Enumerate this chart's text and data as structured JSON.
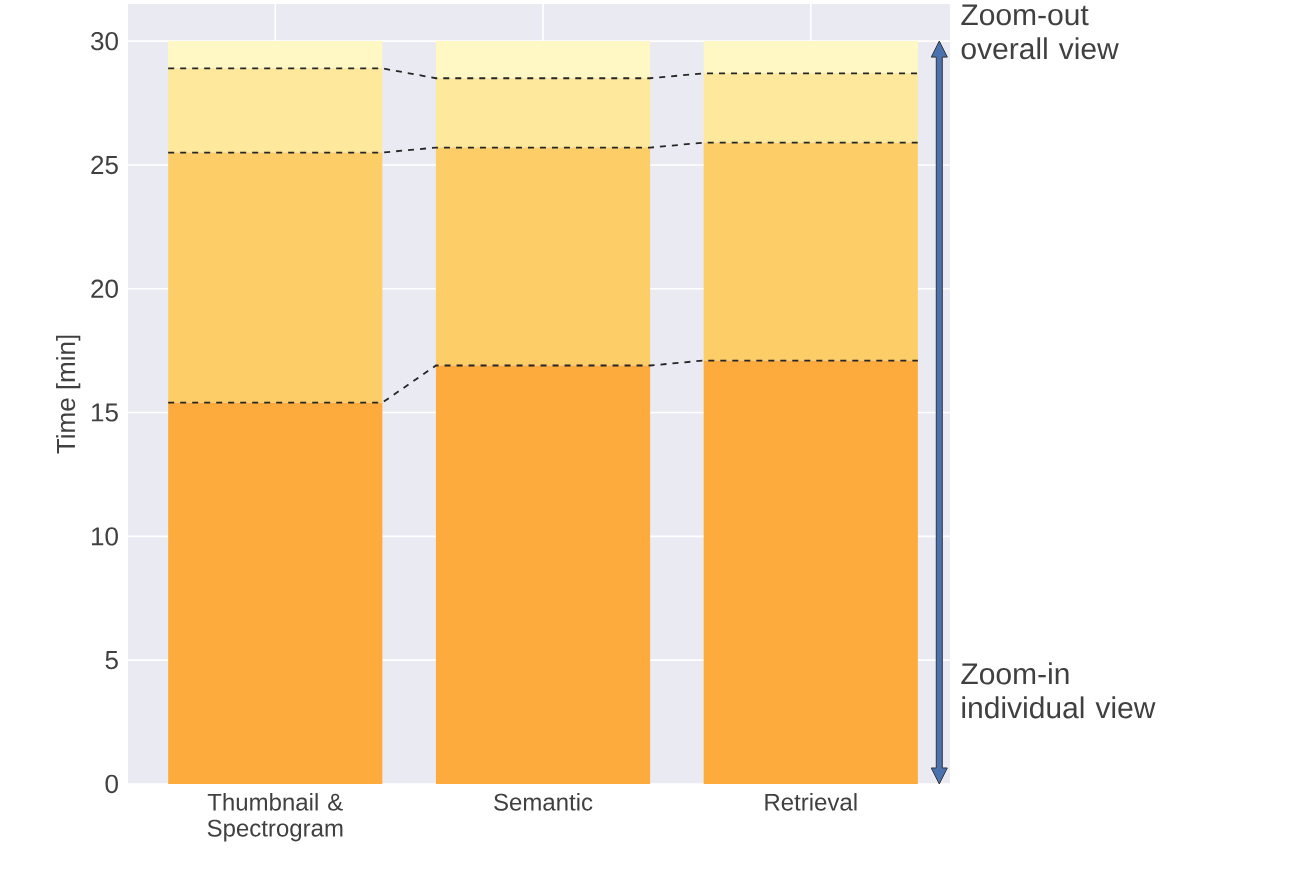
{
  "chart_data": {
    "type": "bar",
    "stacked": true,
    "ylabel": "Time [min]",
    "categories": [
      "Thumbnail & Spectrogram",
      "Semantic",
      "Retrieval"
    ],
    "series": [
      {
        "color": "#fdab3c",
        "values": [
          15.4,
          16.9,
          17.1
        ]
      },
      {
        "color": "#fdcd68",
        "values": [
          10.1,
          8.8,
          8.8
        ]
      },
      {
        "color": "#fde89b",
        "values": [
          3.4,
          2.8,
          2.8
        ]
      },
      {
        "color": "#fff7c4",
        "values": [
          1.1,
          1.5,
          1.3
        ]
      }
    ],
    "ylim": [
      0,
      31.5
    ],
    "yticks": [
      0,
      5,
      10,
      15,
      20,
      25,
      30
    ],
    "grid": true,
    "annotations": [
      "Zoom-out overall view",
      "Zoom-in individual view"
    ]
  }
}
